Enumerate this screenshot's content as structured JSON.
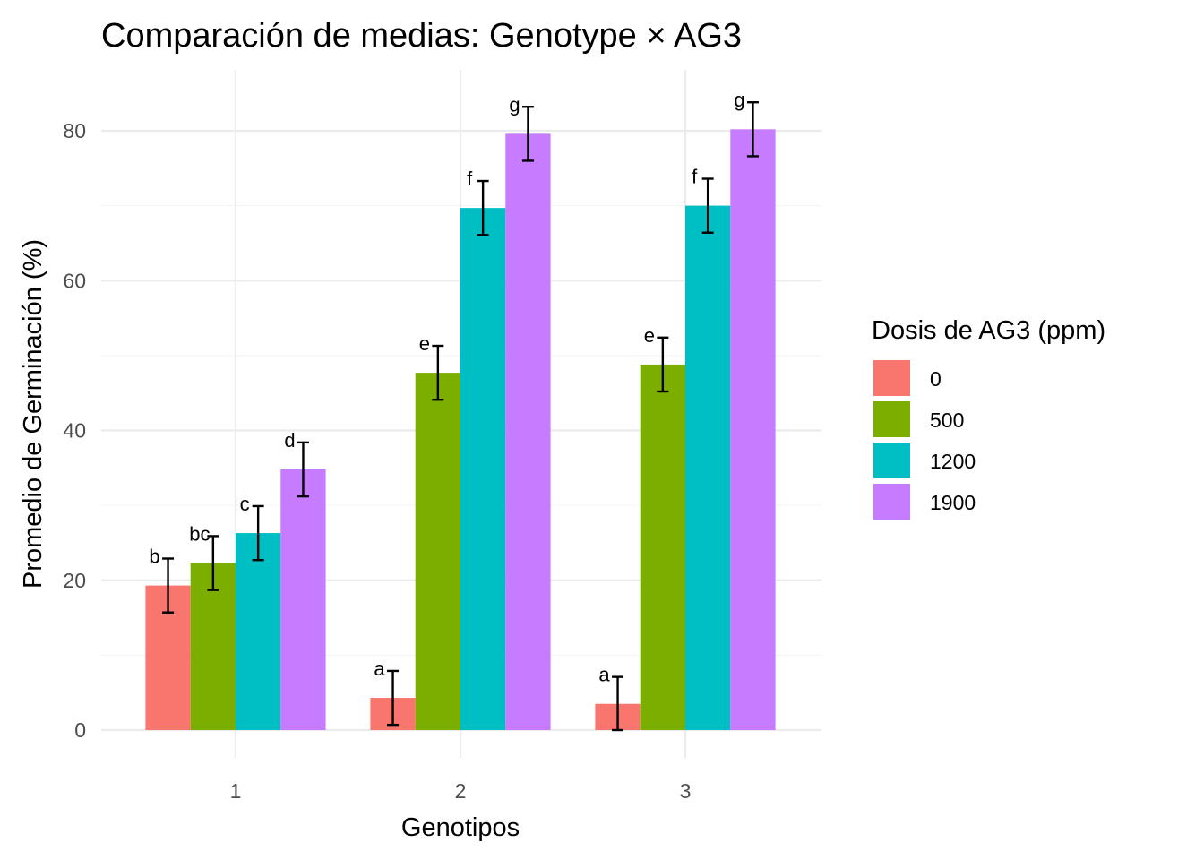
{
  "chart_data": {
    "type": "bar",
    "title": "Comparación de medias: Genotype × AG3",
    "xlabel": "Genotipos",
    "ylabel": "Promedio de Germinación (%)",
    "categories": [
      "1",
      "2",
      "3"
    ],
    "ylim": [
      0,
      88
    ],
    "yticks": [
      0,
      20,
      40,
      60,
      80
    ],
    "grid": true,
    "legend": {
      "title": "Dosis de AG3 (ppm)",
      "position": "right"
    },
    "series": [
      {
        "name": "0",
        "color": "#F8766D",
        "values": [
          19.3,
          4.3,
          3.5
        ],
        "errors": [
          3.6,
          3.6,
          3.6
        ],
        "labels": [
          "b",
          "a",
          "a"
        ]
      },
      {
        "name": "500",
        "color": "#7CAE00",
        "values": [
          22.3,
          47.7,
          48.8
        ],
        "errors": [
          3.6,
          3.6,
          3.6
        ],
        "labels": [
          "bc",
          "e",
          "e"
        ]
      },
      {
        "name": "1200",
        "color": "#00BFC4",
        "values": [
          26.3,
          69.7,
          70.0
        ],
        "errors": [
          3.6,
          3.6,
          3.6
        ],
        "labels": [
          "c",
          "f",
          "f"
        ]
      },
      {
        "name": "1900",
        "color": "#C77CFF",
        "values": [
          34.8,
          79.6,
          80.2
        ],
        "errors": [
          3.6,
          3.6,
          3.6
        ],
        "labels": [
          "d",
          "g",
          "g"
        ]
      }
    ]
  }
}
